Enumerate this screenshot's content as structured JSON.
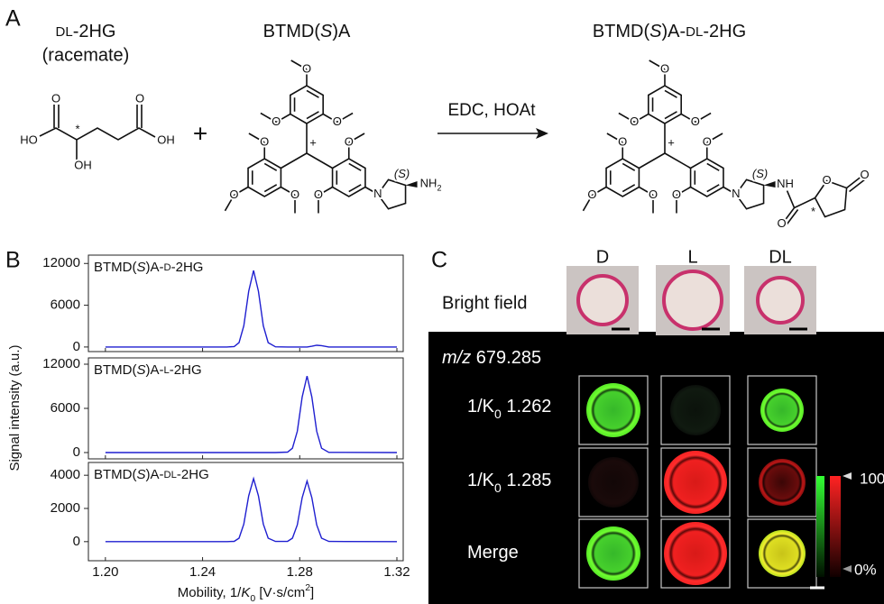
{
  "panel_labels": [
    "A",
    "B",
    "C"
  ],
  "scheme": {
    "reactant1_name": [
      "DL",
      "-2HG"
    ],
    "reactant1_note": "(racemate)",
    "reactant1_atoms": [
      "O",
      "O",
      "HO",
      "*",
      "OH",
      "OH"
    ],
    "plus": "+",
    "reactant2_name": [
      "BTMD(",
      "S",
      ")A"
    ],
    "reactant2_atoms": [
      "O",
      "O",
      "O",
      "O",
      "O",
      "O",
      "O",
      "O",
      "+",
      "N",
      "(S)",
      "NH",
      "2"
    ],
    "reagents": "EDC, HOAt",
    "product_name": [
      "BTMD(",
      "S",
      ")A-",
      "DL",
      "-2HG"
    ],
    "product_atoms": [
      "O",
      "O",
      "O",
      "O",
      "O",
      "O",
      "O",
      "O",
      "+",
      "N",
      "(S)",
      "NH",
      "O",
      "O",
      "O",
      "*"
    ]
  },
  "chart_data": [
    {
      "type": "line",
      "title": [
        "BTMD(",
        "S",
        ")A-",
        "D",
        "-2HG"
      ],
      "x": [
        1.2,
        1.25,
        1.253,
        1.255,
        1.257,
        1.259,
        1.261,
        1.263,
        1.265,
        1.267,
        1.27,
        1.275,
        1.277,
        1.279,
        1.281,
        1.283,
        1.285,
        1.287,
        1.289,
        1.292,
        1.32
      ],
      "series": [
        {
          "color": "#1f1fd0",
          "values": [
            0,
            0,
            70,
            620,
            3060,
            8000,
            11000,
            8000,
            3060,
            620,
            30,
            0,
            0,
            0,
            0,
            0,
            100,
            250,
            200,
            0,
            0
          ]
        }
      ],
      "xlim": [
        1.193,
        1.3226
      ],
      "ylim": [
        -660,
        13200
      ],
      "yticks": [
        0,
        6000,
        12000
      ]
    },
    {
      "type": "line",
      "title": [
        "BTMD(",
        "S",
        ")A-",
        "L",
        "-2HG"
      ],
      "x": [
        1.2,
        1.25,
        1.253,
        1.255,
        1.257,
        1.259,
        1.261,
        1.263,
        1.265,
        1.267,
        1.27,
        1.275,
        1.277,
        1.279,
        1.281,
        1.283,
        1.285,
        1.287,
        1.289,
        1.292,
        1.32
      ],
      "series": [
        {
          "color": "#1f1fd0",
          "values": [
            0,
            0,
            0,
            0,
            0,
            0,
            0,
            0,
            0,
            0,
            0,
            60,
            590,
            2890,
            7550,
            10400,
            7550,
            2890,
            590,
            20,
            0
          ]
        }
      ],
      "xlim": [
        1.193,
        1.3226
      ],
      "ylim": [
        -857,
        12857
      ],
      "yticks": [
        0,
        6000,
        12000
      ],
      "ylabel": "Signal intensity (a.u.)"
    },
    {
      "type": "line",
      "title": [
        "BTMD(",
        "S",
        ")A-",
        "DL",
        "-2HG"
      ],
      "x": [
        1.2,
        1.25,
        1.253,
        1.255,
        1.257,
        1.259,
        1.261,
        1.263,
        1.265,
        1.267,
        1.27,
        1.275,
        1.277,
        1.279,
        1.281,
        1.283,
        1.285,
        1.287,
        1.289,
        1.292,
        1.32
      ],
      "series": [
        {
          "color": "#1f1fd0",
          "values": [
            0,
            0,
            20,
            210,
            1060,
            2760,
            3800,
            2760,
            1060,
            210,
            10,
            20,
            210,
            1010,
            2650,
            3650,
            2650,
            1010,
            210,
            10,
            0
          ]
        }
      ],
      "xlim": [
        1.193,
        1.3226
      ],
      "ylim": [
        -1150,
        4770
      ],
      "yticks": [
        0,
        2000,
        4000
      ],
      "xticks": [
        {
          "value": 1.2,
          "label": "1.20"
        },
        1.24,
        1.28,
        1.32
      ],
      "xlabel": [
        "Mobility, 1/",
        "K",
        "0",
        " [V·s/cm",
        "2",
        "]"
      ]
    }
  ],
  "imaging": {
    "columns": [
      "D",
      "L",
      "DL"
    ],
    "bright_field": "Bright field",
    "mz": [
      "m/z",
      " 679.285"
    ],
    "rows": [
      [
        "1/K",
        "0",
        " 1.262"
      ],
      [
        "1/K",
        "0",
        " 1.285"
      ],
      [
        "Merge"
      ]
    ],
    "colorbar": [
      "100",
      "0%"
    ]
  }
}
